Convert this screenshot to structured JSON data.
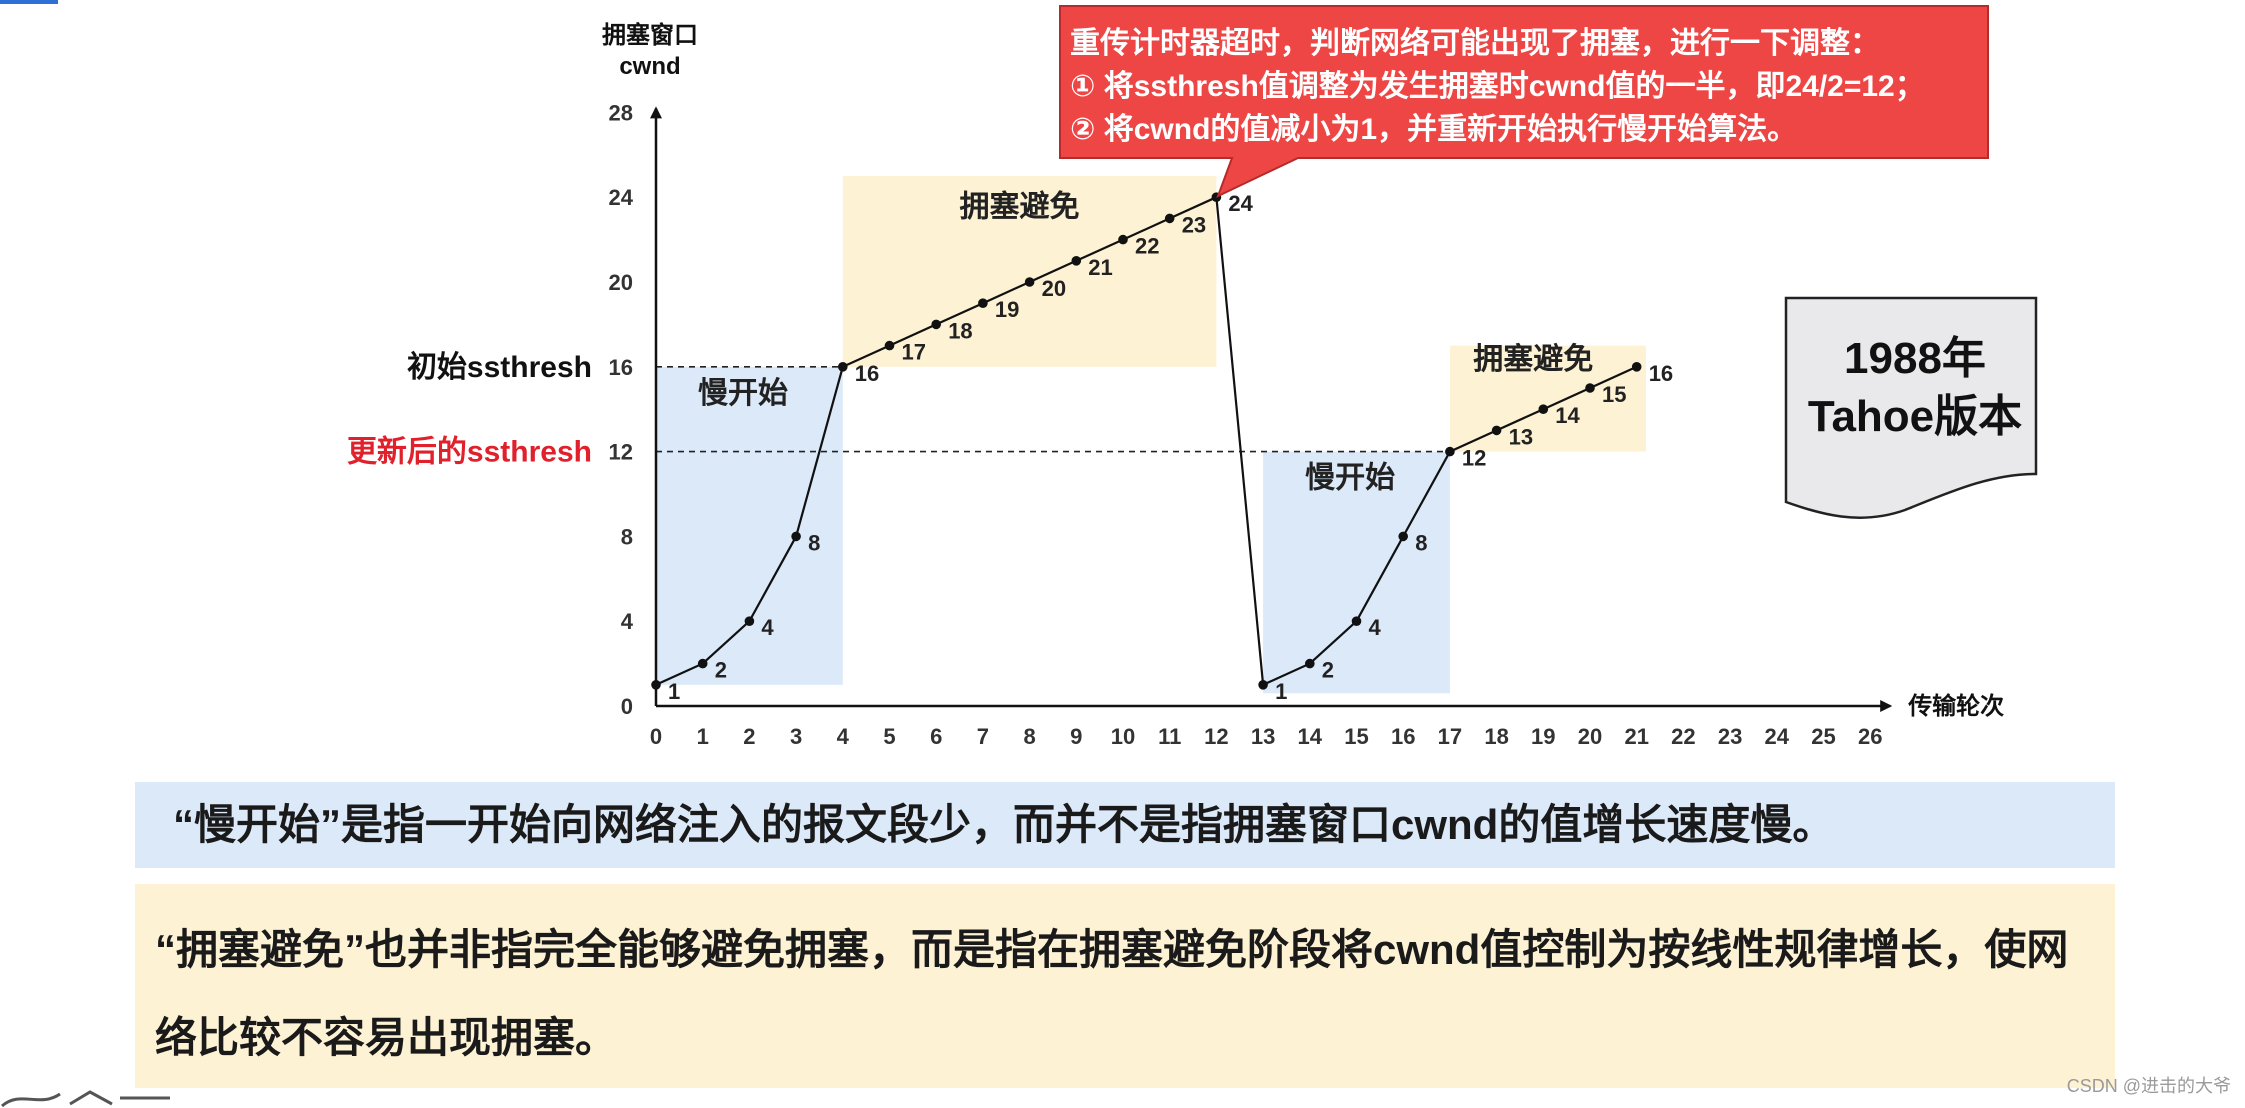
{
  "chart_data": {
    "type": "line",
    "title": "",
    "ylabel_line1": "拥塞窗口",
    "ylabel_line2": "cwnd",
    "xlabel": "传输轮次",
    "xlim": [
      0,
      26
    ],
    "ylim": [
      0,
      28
    ],
    "x_ticks": [
      "0",
      "1",
      "2",
      "3",
      "4",
      "5",
      "6",
      "7",
      "8",
      "9",
      "10",
      "11",
      "12",
      "13",
      "14",
      "15",
      "16",
      "17",
      "18",
      "19",
      "20",
      "21",
      "22",
      "23",
      "24",
      "25",
      "26"
    ],
    "y_ticks": [
      "0",
      "4",
      "8",
      "12",
      "16",
      "20",
      "24",
      "28"
    ],
    "grid": false,
    "series": [
      {
        "x": [
          0,
          1,
          2,
          3,
          4,
          5,
          6,
          7,
          8,
          9,
          10,
          11,
          12,
          13,
          14,
          15,
          16,
          17,
          18,
          19,
          20,
          21
        ],
        "y": [
          1,
          2,
          4,
          8,
          16,
          17,
          18,
          19,
          20,
          21,
          22,
          23,
          24,
          1,
          2,
          4,
          8,
          12,
          13,
          14,
          15,
          16
        ],
        "point_labels": [
          "1",
          "2",
          "4",
          "8",
          "16",
          "17",
          "18",
          "19",
          "20",
          "21",
          "22",
          "23",
          "24",
          "1",
          "2",
          "4",
          "8",
          "12",
          "13",
          "14",
          "15",
          "16"
        ]
      }
    ],
    "thresholds": [
      {
        "value": 16,
        "label": "初始ssthresh",
        "color": "#111111"
      },
      {
        "value": 12,
        "label": "更新后的ssthresh",
        "color": "#e0202a"
      }
    ],
    "regions": [
      {
        "label": "慢开始",
        "x_range": [
          0,
          4
        ],
        "y_range": [
          1,
          16
        ],
        "color": "#dbe9f9"
      },
      {
        "label": "拥塞避免",
        "x_range": [
          4,
          12
        ],
        "y_range": [
          16,
          25
        ],
        "color": "#fdf2d4"
      },
      {
        "label": "慢开始",
        "x_range": [
          13,
          17
        ],
        "y_range": [
          0.6,
          12
        ],
        "color": "#dbe9f9"
      },
      {
        "label": "拥塞避免",
        "x_range": [
          17,
          21.2
        ],
        "y_range": [
          12,
          17
        ],
        "color": "#fdf2d4"
      }
    ]
  },
  "callout": {
    "line1": "重传计时器超时，判断网络可能出现了拥塞，进行一下调整：",
    "line2": "①  将ssthresh值调整为发生拥塞时cwnd值的一半，即24/2=12；",
    "line3": "②  将cwnd的值减小为1，并重新开始执行慢开始算法。",
    "color": "#ee4545"
  },
  "version_box": {
    "line1": "1988年",
    "line2": "Tahoe版本"
  },
  "notes": {
    "slow_start": "“慢开始”是指一开始向网络注入的报文段少，而并不是指拥塞窗口cwnd的值增长速度慢。",
    "congestion_avoidance": "“拥塞避免”也并非指完全能够避免拥塞，而是指在拥塞避免阶段将cwnd值控制为按线性规律增长，使网络比较不容易出现拥塞。"
  },
  "watermark": "CSDN @进击的大爷"
}
